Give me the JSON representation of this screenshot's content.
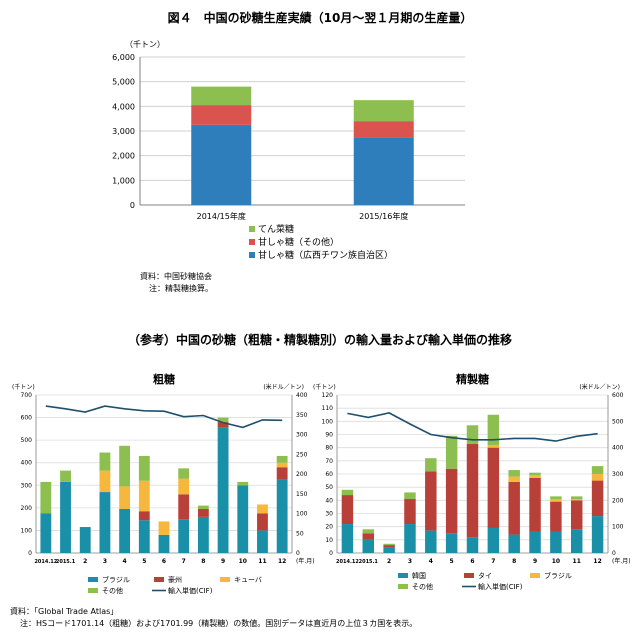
{
  "fig4": {
    "title": "図４　中国の砂糖生産実績（10月～翌１月期の生産量）",
    "unit": "（千トン）",
    "source": "資料：中国砂糖協会",
    "note": "注：精製糖換算。"
  },
  "ref": {
    "title": "（参考）中国の砂糖（粗糖・精製糖別）の輸入量および輸入単価の推移",
    "source": "資料：「Global Trade Atlas」",
    "note": "注：HSコード1701.14（粗糖）および1701.99（精製糖）の数値。国別データは直近月の上位３カ国を表示。"
  },
  "chart_data": [
    {
      "type": "bar",
      "stacked": true,
      "title": "図４　中国の砂糖生産実績（10月～翌１月期の生産量）",
      "ylabel": "（千トン）",
      "ylim": [
        0,
        6000
      ],
      "yticks": [
        "0",
        "1,000",
        "2,000",
        "3,000",
        "4,000",
        "5,000",
        "6,000"
      ],
      "categories": [
        "2014/15年度",
        "2015/16年度"
      ],
      "series": [
        {
          "name": "甘しゃ糖（広西チワン族自治区）",
          "color": "#2e7ebc",
          "values": [
            3250,
            2750
          ]
        },
        {
          "name": "甘しゃ糖（その他）",
          "color": "#d9534f",
          "values": [
            800,
            650
          ]
        },
        {
          "name": "てん菜糖",
          "color": "#8cbf4f",
          "values": [
            750,
            850
          ]
        }
      ],
      "legend": "bottom",
      "grid": true
    },
    {
      "type": "bar",
      "stacked": true,
      "title": "粗糖",
      "ylabel": "(千トン)",
      "y2label": "(米ドル／トン)",
      "xunit": "(年.月)",
      "ylim": [
        0,
        700
      ],
      "y2lim": [
        0,
        400
      ],
      "yticks": [
        "0",
        "100",
        "200",
        "300",
        "400",
        "500",
        "600",
        "700"
      ],
      "y2ticks": [
        "0",
        "50",
        "100",
        "150",
        "200",
        "250",
        "300",
        "350",
        "400"
      ],
      "categories": [
        "2014.12",
        "2015.1",
        "2",
        "3",
        "4",
        "5",
        "6",
        "7",
        "8",
        "9",
        "10",
        "11",
        "12"
      ],
      "series": [
        {
          "name": "ブラジル",
          "color": "#1a8fa8",
          "values": [
            175,
            315,
            115,
            270,
            195,
            145,
            80,
            150,
            160,
            555,
            300,
            100,
            325
          ]
        },
        {
          "name": "豪州",
          "color": "#b94038",
          "values": [
            0,
            0,
            0,
            0,
            0,
            40,
            0,
            110,
            35,
            25,
            0,
            75,
            55
          ]
        },
        {
          "name": "キューバ",
          "color": "#f5b83d",
          "values": [
            0,
            0,
            0,
            95,
            100,
            135,
            60,
            70,
            0,
            0,
            0,
            40,
            20
          ]
        },
        {
          "name": "その他",
          "color": "#8cbf4f",
          "values": [
            140,
            50,
            0,
            80,
            180,
            110,
            0,
            45,
            15,
            20,
            15,
            0,
            30
          ]
        }
      ],
      "line": {
        "name": "輸入単価(CIF)",
        "color": "#1f4f6e",
        "axis": "right",
        "values": [
          372,
          365,
          357,
          372,
          365,
          360,
          359,
          345,
          348,
          330,
          318,
          337,
          336
        ]
      },
      "legend": "bottom"
    },
    {
      "type": "bar",
      "stacked": true,
      "title": "精製糖",
      "ylabel": "(千トン)",
      "y2label": "(米ドル／トン)",
      "xunit": "(年.月)",
      "ylim": [
        0,
        120
      ],
      "y2lim": [
        0,
        600
      ],
      "yticks": [
        "0",
        "10",
        "20",
        "30",
        "40",
        "50",
        "60",
        "70",
        "80",
        "90",
        "100",
        "110",
        "120"
      ],
      "y2ticks": [
        "0",
        "100",
        "200",
        "300",
        "400",
        "500",
        "600"
      ],
      "categories": [
        "2014.12",
        "2015.1",
        "2",
        "3",
        "4",
        "5",
        "6",
        "7",
        "8",
        "9",
        "10",
        "11",
        "12"
      ],
      "series": [
        {
          "name": "韓国",
          "color": "#1a8fa8",
          "values": [
            22,
            10,
            4,
            22,
            17,
            15,
            12,
            19,
            14,
            16,
            16,
            18,
            28
          ]
        },
        {
          "name": "タイ",
          "color": "#b94038",
          "values": [
            22,
            5,
            2,
            19,
            45,
            49,
            71,
            61,
            40,
            41,
            23,
            22,
            27
          ]
        },
        {
          "name": "ブラジル",
          "color": "#f5b83d",
          "values": [
            0,
            0,
            0,
            0,
            0,
            0,
            0,
            2,
            4,
            2,
            2,
            1,
            5
          ]
        },
        {
          "name": "その他",
          "color": "#8cbf4f",
          "values": [
            4,
            3,
            1,
            5,
            10,
            25,
            14,
            23,
            5,
            2,
            2,
            2,
            6
          ]
        }
      ],
      "line": {
        "name": "輸入単価(CIF)",
        "color": "#1f4f6e",
        "axis": "right",
        "values": [
          530,
          515,
          532,
          490,
          450,
          438,
          430,
          430,
          435,
          435,
          425,
          443,
          453
        ]
      },
      "legend": "bottom"
    }
  ]
}
